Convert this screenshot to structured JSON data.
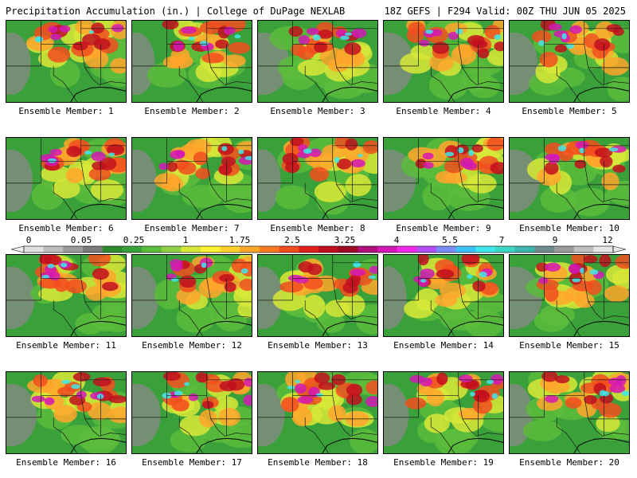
{
  "header": {
    "title": "Precipitation Accumulation (in.) | College of DuPage NEXLAB",
    "run_info": "18Z GEFS | F294 Valid: 00Z THU JUN 05 2025"
  },
  "colorbar": {
    "labels": [
      "0",
      "0.05",
      "0.25",
      "1",
      "1.75",
      "2.5",
      "3.25",
      "4",
      "5.5",
      "7",
      "9",
      "12"
    ],
    "colors": [
      "#e0e0e0",
      "#bdbdbd",
      "#9a9a9a",
      "#7a7a7a",
      "#2f8a2f",
      "#3aa03a",
      "#5cbc3c",
      "#8fd046",
      "#d8e838",
      "#fff233",
      "#ffd12e",
      "#ffa62b",
      "#ff7b22",
      "#f24d1e",
      "#e0211c",
      "#c20f1f",
      "#9c0b26",
      "#b0107c",
      "#d418b6",
      "#f028e8",
      "#b24ef4",
      "#7a8cf6",
      "#3cc2f7",
      "#3ee8ea",
      "#40d6c4",
      "#3cb6ac",
      "#6f8c8c",
      "#9a9a9a",
      "#c0c0c0",
      "#e6e6e6"
    ]
  },
  "members": [
    {
      "label": "Ensemble Member: 1"
    },
    {
      "label": "Ensemble Member: 2"
    },
    {
      "label": "Ensemble Member: 3"
    },
    {
      "label": "Ensemble Member: 4"
    },
    {
      "label": "Ensemble Member: 5"
    },
    {
      "label": "Ensemble Member: 6"
    },
    {
      "label": "Ensemble Member: 7"
    },
    {
      "label": "Ensemble Member: 8"
    },
    {
      "label": "Ensemble Member: 9"
    },
    {
      "label": "Ensemble Member: 10"
    },
    {
      "label": "Ensemble Member: 11"
    },
    {
      "label": "Ensemble Member: 12"
    },
    {
      "label": "Ensemble Member: 13"
    },
    {
      "label": "Ensemble Member: 14"
    },
    {
      "label": "Ensemble Member: 15"
    },
    {
      "label": "Ensemble Member: 16"
    },
    {
      "label": "Ensemble Member: 17"
    },
    {
      "label": "Ensemble Member: 18"
    },
    {
      "label": "Ensemble Member: 19"
    },
    {
      "label": "Ensemble Member: 20"
    }
  ]
}
